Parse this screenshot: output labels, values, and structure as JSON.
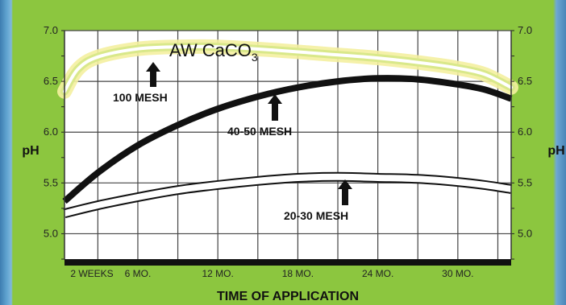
{
  "chart_data": {
    "type": "line",
    "title": "",
    "xlabel": "TIME OF APPLICATION",
    "ylabel": "pH",
    "ylabel_right": "pH",
    "ylim": [
      4.75,
      7.0
    ],
    "yticks": [
      5.0,
      5.5,
      6.0,
      6.5,
      7.0
    ],
    "ytick_labels": [
      "5.0",
      "5.5",
      "6.0",
      "6.5",
      "7.0"
    ],
    "x_categories": [
      "2 WEEKS",
      "6 MO.",
      "12 MO.",
      "18 MO.",
      "24 MO.",
      "30 MO."
    ],
    "x_months": [
      0.5,
      6,
      12,
      18,
      24,
      30
    ],
    "xlim": [
      0.5,
      34
    ],
    "grid": true,
    "product_label": {
      "text": "AW CaCO",
      "subscript": "3"
    },
    "series": [
      {
        "name": "100 MESH",
        "x": [
          0.5,
          1.5,
          3,
          6,
          9,
          12,
          16,
          20,
          24,
          28,
          30,
          32,
          34
        ],
        "y": [
          6.4,
          6.62,
          6.74,
          6.82,
          6.84,
          6.84,
          6.81,
          6.77,
          6.73,
          6.67,
          6.63,
          6.57,
          6.44
        ]
      },
      {
        "name": "40-50 MESH",
        "x": [
          0.5,
          3,
          6,
          9,
          12,
          15,
          18,
          21,
          24,
          27,
          30,
          32,
          34
        ],
        "y": [
          5.32,
          5.6,
          5.87,
          6.07,
          6.23,
          6.35,
          6.44,
          6.5,
          6.53,
          6.52,
          6.47,
          6.42,
          6.33
        ]
      },
      {
        "name": "20-30 MESH",
        "x": [
          0.5,
          3,
          6,
          9,
          12,
          15,
          18,
          21,
          24,
          27,
          30,
          32,
          34
        ],
        "y": [
          5.2,
          5.28,
          5.36,
          5.43,
          5.48,
          5.52,
          5.55,
          5.56,
          5.55,
          5.54,
          5.51,
          5.48,
          5.44
        ]
      }
    ],
    "colors": {
      "background": "#8cc63f",
      "plot_area": "#ffffff",
      "grid": "#444444",
      "line_dark": "#111111",
      "highlight_glow": "#f4f0a0"
    }
  }
}
